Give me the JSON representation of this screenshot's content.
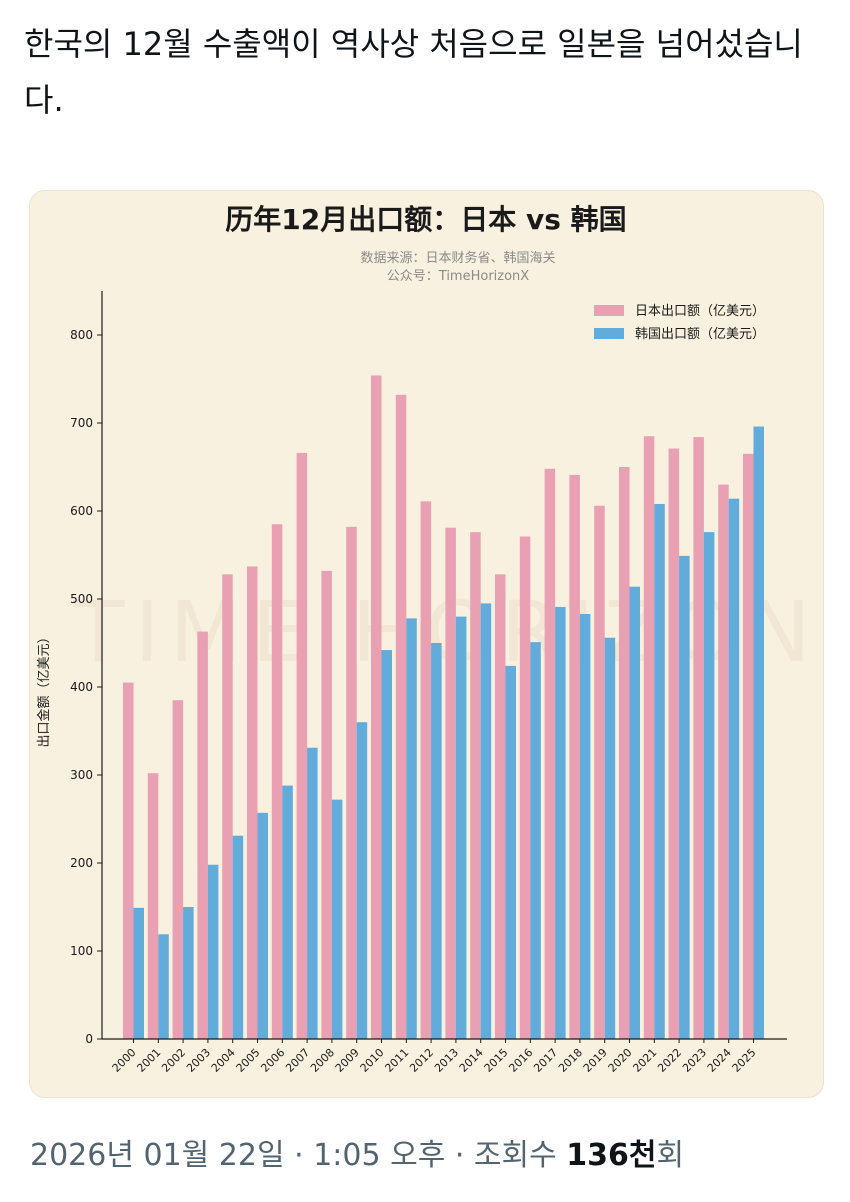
{
  "post": {
    "text": "한국의 12월 수출액이 역사상 처음으로 일본을 넘어섰습니다."
  },
  "meta": {
    "date": "2026년 01월 22일",
    "separator": " · ",
    "time": "1:05 오후",
    "views_label": "조회수 ",
    "views_count": "136천",
    "views_unit": "회"
  },
  "chart_data": {
    "type": "bar",
    "title": "历年12月出口额：日本 vs 韩国",
    "source": "数据来源：日本财务省、韩国海关",
    "account": "公众号：TimeHorizonX",
    "watermark": "TIME HORIZON",
    "xlabel": "",
    "ylabel": "出口金额（亿美元）",
    "ylim": [
      0,
      850
    ],
    "yticks": [
      0,
      100,
      200,
      300,
      400,
      500,
      600,
      700,
      800
    ],
    "legend_position": "top-right",
    "categories": [
      "2000",
      "2001",
      "2002",
      "2003",
      "2004",
      "2005",
      "2006",
      "2007",
      "2008",
      "2009",
      "2010",
      "2011",
      "2012",
      "2013",
      "2014",
      "2015",
      "2016",
      "2017",
      "2018",
      "2019",
      "2020",
      "2021",
      "2022",
      "2023",
      "2024",
      "2025"
    ],
    "series": [
      {
        "name": "日本出口额（亿美元）",
        "color": "#e8a0b2",
        "values": [
          405,
          302,
          385,
          463,
          528,
          537,
          585,
          666,
          532,
          582,
          754,
          732,
          611,
          581,
          576,
          528,
          571,
          648,
          641,
          606,
          650,
          685,
          671,
          684,
          630,
          665
        ]
      },
      {
        "name": "韩国出口额（亿美元）",
        "color": "#62acdc",
        "values": [
          149,
          119,
          150,
          198,
          231,
          257,
          288,
          331,
          272,
          360,
          442,
          478,
          450,
          480,
          495,
          424,
          451,
          491,
          483,
          456,
          514,
          608,
          549,
          576,
          614,
          696
        ]
      }
    ]
  }
}
